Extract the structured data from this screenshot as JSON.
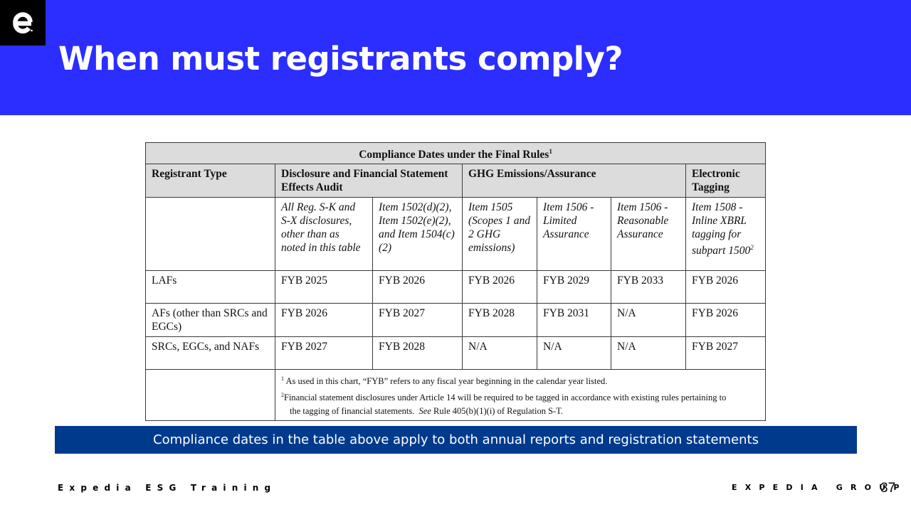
{
  "header": {
    "title": "When must registrants comply?",
    "logo_icon": "expedia-e-logo-icon",
    "background_color": "#2b2eff"
  },
  "table": {
    "caption": "Compliance Dates under the Final Rules",
    "caption_note": "1",
    "headers": {
      "registrant_type": "Registrant Type",
      "disclosure": "Disclosure and Financial Statement Effects Audit",
      "ghg": "GHG Emissions/Assurance",
      "electronic": "Electronic Tagging"
    },
    "subheaders": [
      "All Reg. S-K and S-X disclosures, other than as noted in this table",
      "Item 1502(d)(2), Item 1502(e)(2), and Item 1504(c)(2)",
      "Item 1505 (Scopes 1 and 2 GHG emissions)",
      "Item 1506 - Limited Assurance",
      "Item 1506 - Reasonable Assurance",
      "Item 1508 - Inline XBRL tagging for subpart 1500"
    ],
    "subheader_note": "2",
    "rows": [
      {
        "type": "LAFs",
        "values": [
          "FYB 2025",
          "FYB 2026",
          "FYB 2026",
          "FYB 2029",
          "FYB 2033",
          "FYB 2026"
        ]
      },
      {
        "type": "AFs (other than SRCs and EGCs)",
        "values": [
          "FYB 2026",
          "FYB 2027",
          "FYB 2028",
          "FYB 2031",
          "N/A",
          "FYB 2026"
        ]
      },
      {
        "type": "SRCs, EGCs, and NAFs",
        "values": [
          "FYB 2027",
          "FYB 2028",
          "N/A",
          "N/A",
          "N/A",
          "FYB 2027"
        ]
      }
    ],
    "footnotes": {
      "note1_mark": "1",
      "note1": "As used in this chart, “FYB” refers to any fiscal year beginning in the calendar year listed.",
      "note2_mark": "2",
      "note2_line1": "Financial statement disclosures under Article 14 will be required to be tagged in accordance with existing rules pertaining to",
      "note2_line2_pre": "the tagging of financial statements.",
      "note2_see": "See",
      "note2_line2_post": "Rule 405(b)(1)(i) of Regulation S-T."
    }
  },
  "banner": {
    "text": "Compliance dates in the table above apply to both annual reports and registration statements",
    "color": "#003a8c"
  },
  "footer": {
    "left": "Expedia ESG Training",
    "right": "EXPEDIA GROUP",
    "page_number": "37"
  }
}
